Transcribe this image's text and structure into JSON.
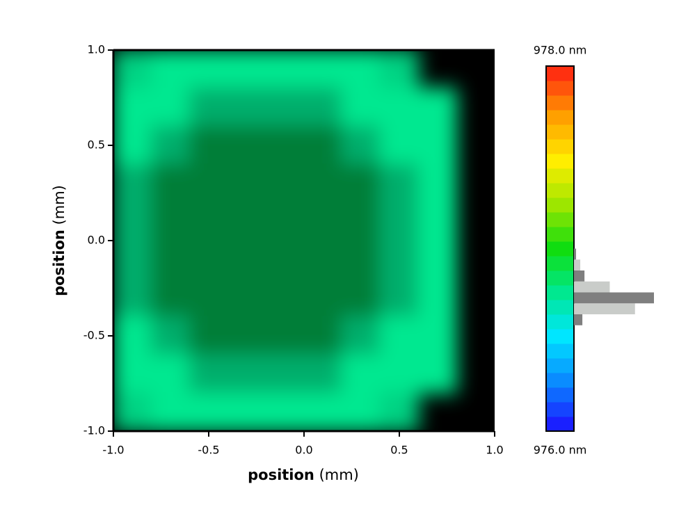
{
  "chart_data": {
    "type": "heatmap",
    "xlabel": "position",
    "xlabel_unit": "(mm)",
    "ylabel": "position",
    "ylabel_unit": "(mm)",
    "xlim": [
      -1,
      1
    ],
    "ylim": [
      -1,
      1
    ],
    "xticks": [
      {
        "value": -1,
        "label": "-1.0"
      },
      -0.5,
      {
        "value": 0,
        "label": "0.0"
      },
      0.5,
      {
        "value": 1,
        "label": "1.0"
      }
    ],
    "yticks": [
      {
        "value": -1,
        "label": "-1.0"
      },
      -0.5,
      {
        "value": 0,
        "label": "0.0"
      },
      0.5,
      {
        "value": 1,
        "label": "1.0"
      }
    ],
    "x": [
      -0.9,
      -0.7,
      -0.5,
      -0.3,
      -0.1,
      0.1,
      0.3,
      0.5,
      0.7,
      0.9
    ],
    "y": [
      0.9,
      0.7,
      0.5,
      0.3,
      0.1,
      -0.1,
      -0.3,
      -0.5,
      -0.7,
      -0.9
    ],
    "z": [
      [
        976.75,
        976.75,
        976.75,
        976.75,
        976.75,
        976.75,
        976.75,
        976.75,
        null,
        null
      ],
      [
        976.75,
        976.75,
        976.8,
        976.8,
        976.8,
        976.8,
        976.75,
        976.75,
        976.75,
        null
      ],
      [
        976.75,
        976.8,
        976.85,
        976.85,
        976.85,
        976.85,
        976.8,
        976.75,
        976.75,
        null
      ],
      [
        976.8,
        976.85,
        976.85,
        976.85,
        976.85,
        976.85,
        976.85,
        976.8,
        976.75,
        null
      ],
      [
        976.8,
        976.85,
        976.85,
        976.85,
        976.85,
        976.85,
        976.85,
        976.8,
        976.75,
        null
      ],
      [
        976.8,
        976.85,
        976.85,
        976.85,
        976.85,
        976.85,
        976.85,
        976.8,
        976.75,
        null
      ],
      [
        976.8,
        976.85,
        976.85,
        976.85,
        976.85,
        976.85,
        976.85,
        976.8,
        976.75,
        null
      ],
      [
        976.75,
        976.8,
        976.85,
        976.85,
        976.85,
        976.85,
        976.8,
        976.75,
        976.75,
        null
      ],
      [
        976.75,
        976.75,
        976.8,
        976.8,
        976.8,
        976.8,
        976.75,
        976.75,
        976.75,
        null
      ],
      [
        976.75,
        976.75,
        976.75,
        976.75,
        976.75,
        976.75,
        976.75,
        976.75,
        null,
        null
      ]
    ],
    "intensity": [
      [
        0.9,
        1,
        1,
        1,
        1,
        1,
        1,
        0.9,
        null,
        null
      ],
      [
        1,
        1,
        0.75,
        0.75,
        0.75,
        0.75,
        1,
        1,
        1,
        null
      ],
      [
        1,
        0.75,
        0.55,
        0.55,
        0.55,
        0.55,
        0.75,
        1,
        1,
        null
      ],
      [
        0.75,
        0.55,
        0.55,
        0.55,
        0.55,
        0.55,
        0.55,
        0.75,
        1,
        null
      ],
      [
        0.75,
        0.55,
        0.55,
        0.55,
        0.55,
        0.55,
        0.55,
        0.75,
        1,
        null
      ],
      [
        0.75,
        0.55,
        0.55,
        0.55,
        0.55,
        0.55,
        0.55,
        0.75,
        1,
        null
      ],
      [
        0.75,
        0.55,
        0.55,
        0.55,
        0.55,
        0.55,
        0.55,
        0.75,
        1,
        null
      ],
      [
        1,
        0.75,
        0.55,
        0.55,
        0.55,
        0.55,
        0.75,
        1,
        1,
        null
      ],
      [
        1,
        1,
        0.75,
        0.75,
        0.75,
        0.75,
        1,
        1,
        1,
        null
      ],
      [
        0.9,
        1,
        1,
        1,
        1,
        1,
        1,
        0.9,
        null,
        null
      ]
    ],
    "clim": [
      {
        "value": 976,
        "label": "976.0 nm"
      },
      {
        "value": 978,
        "label": "978.0 nm"
      }
    ],
    "colormap": [
      "#1a20ff",
      "#0a8cff",
      "#00e6ff",
      "#00e890",
      "#10dd10",
      "#9de600",
      "#ffee00",
      "#ffa000",
      "#ff3010"
    ],
    "color_steps": 25,
    "hist_bins": [
      976.58,
      976.64,
      976.7,
      976.76,
      976.82,
      976.88,
      976.94,
      977.0
    ],
    "hist_counts": [
      4,
      29,
      38,
      17,
      5,
      3,
      1
    ],
    "hist_colors": [
      "#7f7f7f",
      "#c9ccc9"
    ]
  }
}
